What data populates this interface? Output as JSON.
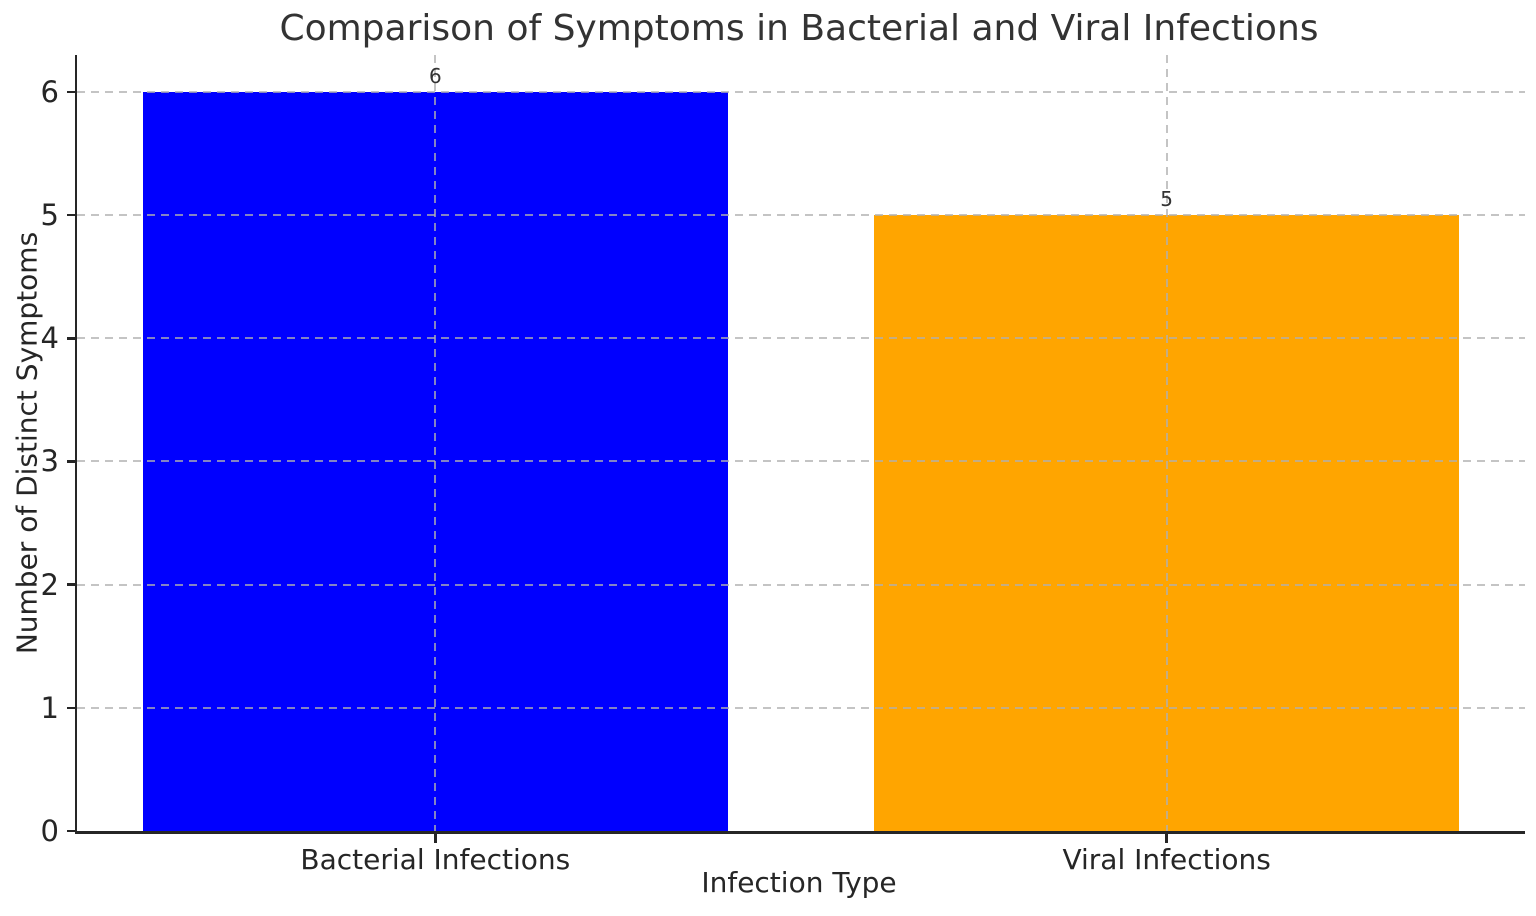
{
  "chart_data": {
    "type": "bar",
    "title": "Comparison of Symptoms in Bacterial and Viral Infections",
    "categories": [
      "Bacterial Infections",
      "Viral Infections"
    ],
    "values": [
      6,
      5
    ],
    "value_labels": [
      "6",
      "5"
    ],
    "bar_colors": [
      "#0000ff",
      "#ffa500"
    ],
    "xlabel": "Infection Type",
    "ylabel": "Number of Distinct Symptoms",
    "ylim": [
      0,
      6.3
    ],
    "yticks": [
      0,
      1,
      2,
      3,
      4,
      5,
      6
    ],
    "grid": true,
    "grid_linestyle": "dashed",
    "grid_color": "#b0b0b0",
    "legend": "none",
    "axis_color": "#262626",
    "text_color": "#333333"
  }
}
